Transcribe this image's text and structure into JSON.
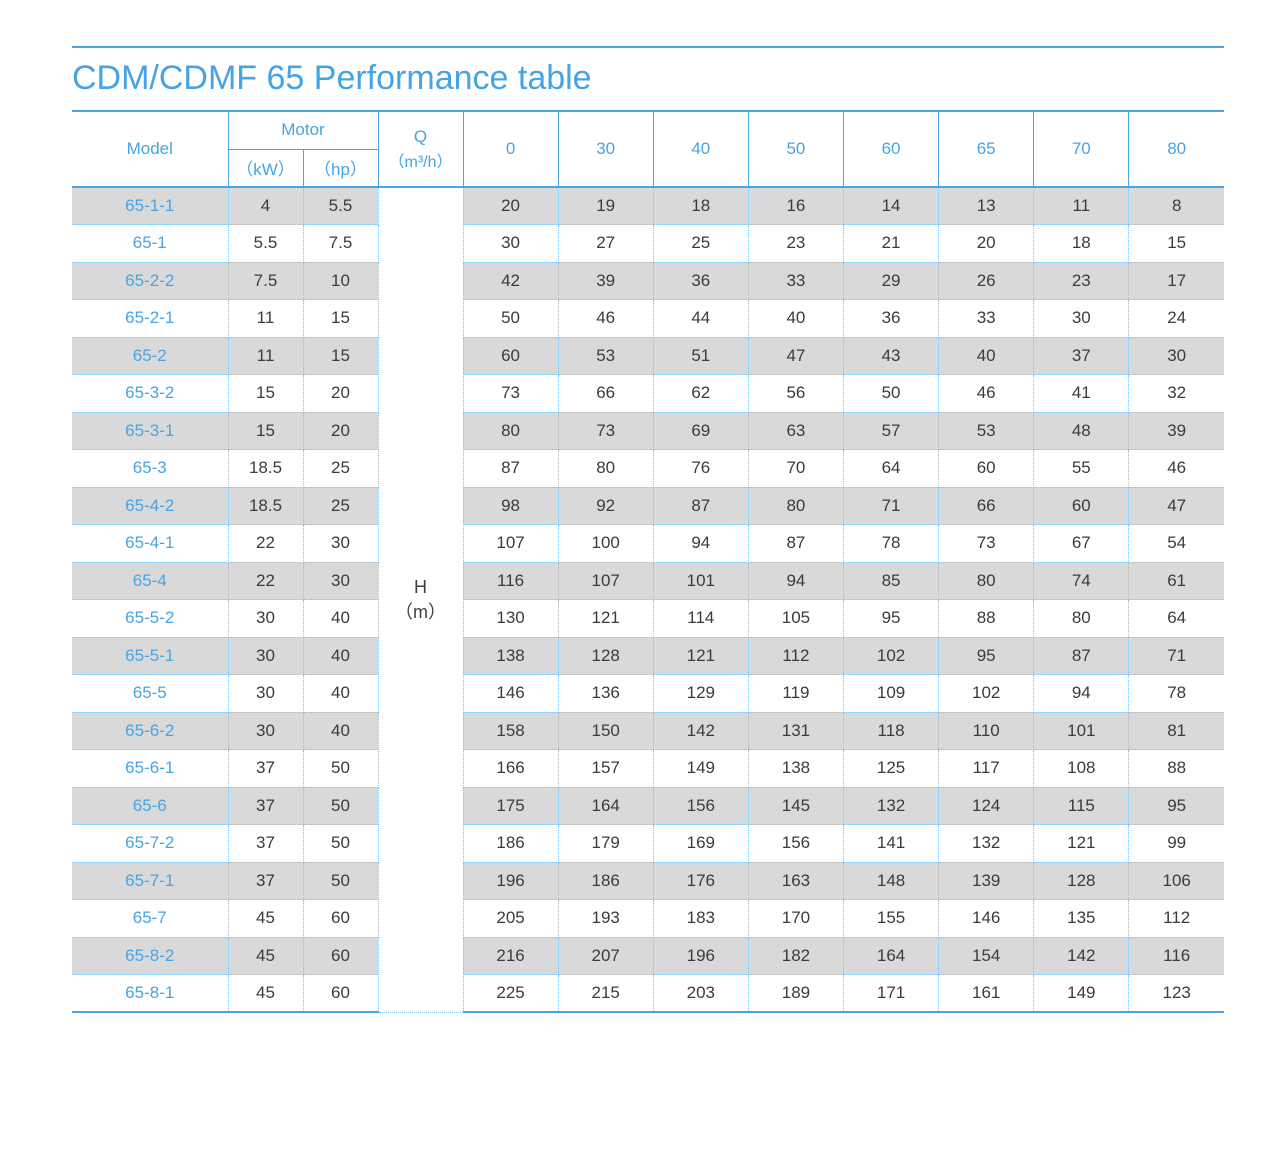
{
  "page": {
    "title": "CDM/CDMF 65 Performance table"
  },
  "colors": {
    "accent_blue": "#47a4e4",
    "solid_border_blue": "#4aa5e4",
    "dotted_border_blue": "#7fc3ee",
    "row_gray": "#d9d9d9",
    "value_text": "#3b3b3b"
  },
  "table": {
    "headers": {
      "model": "Model",
      "motor": "Motor",
      "motor_kw": "（kW）",
      "motor_hp": "（hp）",
      "q_label": "Q",
      "q_unit": "（m³/h）",
      "flow_columns": [
        "0",
        "30",
        "40",
        "50",
        "60",
        "65",
        "70",
        "80"
      ]
    },
    "h_cell": {
      "label": "H",
      "unit": "（m）"
    },
    "rows": [
      {
        "model": "65-1-1",
        "kw": "4",
        "hp": "5.5",
        "values": [
          20,
          19,
          18,
          16,
          14,
          13,
          11,
          8
        ]
      },
      {
        "model": "65-1",
        "kw": "5.5",
        "hp": "7.5",
        "values": [
          30,
          27,
          25,
          23,
          21,
          20,
          18,
          15
        ]
      },
      {
        "model": "65-2-2",
        "kw": "7.5",
        "hp": "10",
        "values": [
          42,
          39,
          36,
          33,
          29,
          26,
          23,
          17
        ]
      },
      {
        "model": "65-2-1",
        "kw": "11",
        "hp": "15",
        "values": [
          50,
          46,
          44,
          40,
          36,
          33,
          30,
          24
        ]
      },
      {
        "model": "65-2",
        "kw": "11",
        "hp": "15",
        "values": [
          60,
          53,
          51,
          47,
          43,
          40,
          37,
          30
        ]
      },
      {
        "model": "65-3-2",
        "kw": "15",
        "hp": "20",
        "values": [
          73,
          66,
          62,
          56,
          50,
          46,
          41,
          32
        ]
      },
      {
        "model": "65-3-1",
        "kw": "15",
        "hp": "20",
        "values": [
          80,
          73,
          69,
          63,
          57,
          53,
          48,
          39
        ]
      },
      {
        "model": "65-3",
        "kw": "18.5",
        "hp": "25",
        "values": [
          87,
          80,
          76,
          70,
          64,
          60,
          55,
          46
        ]
      },
      {
        "model": "65-4-2",
        "kw": "18.5",
        "hp": "25",
        "values": [
          98,
          92,
          87,
          80,
          71,
          66,
          60,
          47
        ]
      },
      {
        "model": "65-4-1",
        "kw": "22",
        "hp": "30",
        "values": [
          107,
          100,
          94,
          87,
          78,
          73,
          67,
          54
        ]
      },
      {
        "model": "65-4",
        "kw": "22",
        "hp": "30",
        "values": [
          116,
          107,
          101,
          94,
          85,
          80,
          74,
          61
        ]
      },
      {
        "model": "65-5-2",
        "kw": "30",
        "hp": "40",
        "values": [
          130,
          121,
          114,
          105,
          95,
          88,
          80,
          64
        ]
      },
      {
        "model": "65-5-1",
        "kw": "30",
        "hp": "40",
        "values": [
          138,
          128,
          121,
          112,
          102,
          95,
          87,
          71
        ]
      },
      {
        "model": "65-5",
        "kw": "30",
        "hp": "40",
        "values": [
          146,
          136,
          129,
          119,
          109,
          102,
          94,
          78
        ]
      },
      {
        "model": "65-6-2",
        "kw": "30",
        "hp": "40",
        "values": [
          158,
          150,
          142,
          131,
          118,
          110,
          101,
          81
        ]
      },
      {
        "model": "65-6-1",
        "kw": "37",
        "hp": "50",
        "values": [
          166,
          157,
          149,
          138,
          125,
          117,
          108,
          88
        ]
      },
      {
        "model": "65-6",
        "kw": "37",
        "hp": "50",
        "values": [
          175,
          164,
          156,
          145,
          132,
          124,
          115,
          95
        ]
      },
      {
        "model": "65-7-2",
        "kw": "37",
        "hp": "50",
        "values": [
          186,
          179,
          169,
          156,
          141,
          132,
          121,
          99
        ]
      },
      {
        "model": "65-7-1",
        "kw": "37",
        "hp": "50",
        "values": [
          196,
          186,
          176,
          163,
          148,
          139,
          128,
          106
        ]
      },
      {
        "model": "65-7",
        "kw": "45",
        "hp": "60",
        "values": [
          205,
          193,
          183,
          170,
          155,
          146,
          135,
          112
        ]
      },
      {
        "model": "65-8-2",
        "kw": "45",
        "hp": "60",
        "values": [
          216,
          207,
          196,
          182,
          164,
          154,
          142,
          116
        ]
      },
      {
        "model": "65-8-1",
        "kw": "45",
        "hp": "60",
        "values": [
          225,
          215,
          203,
          189,
          171,
          161,
          149,
          123
        ]
      }
    ]
  }
}
